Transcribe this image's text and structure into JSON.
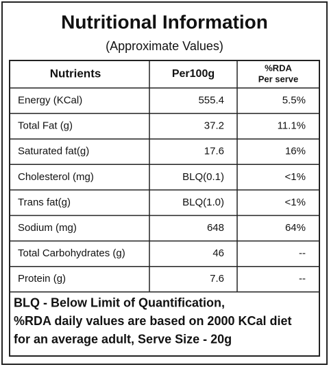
{
  "header": {
    "title": "Nutritional Information",
    "subtitle": "(Approximate Values)"
  },
  "table": {
    "columns": [
      "Nutrients",
      "Per100g",
      [
        "%RDA",
        "Per serve"
      ]
    ],
    "rows": [
      [
        "Energy (KCal)",
        "555.4",
        "5.5%"
      ],
      [
        "Total Fat (g)",
        "37.2",
        "11.1%"
      ],
      [
        "Saturated fat(g)",
        "17.6",
        "16%"
      ],
      [
        "Cholesterol (mg)",
        "BLQ(0.1)",
        "<1%"
      ],
      [
        "Trans fat(g)",
        "BLQ(1.0)",
        "<1%"
      ],
      [
        "Sodium (mg)",
        "648",
        "64%"
      ],
      [
        "Total Carbohydrates (g)",
        "46",
        "--"
      ],
      [
        "Protein (g)",
        "7.6",
        "--"
      ]
    ]
  },
  "footer": [
    "BLQ - Below Limit of Quantification,",
    "%RDA daily values are based on 2000 KCal diet",
    "for an average adult, Serve Size - 20g"
  ]
}
